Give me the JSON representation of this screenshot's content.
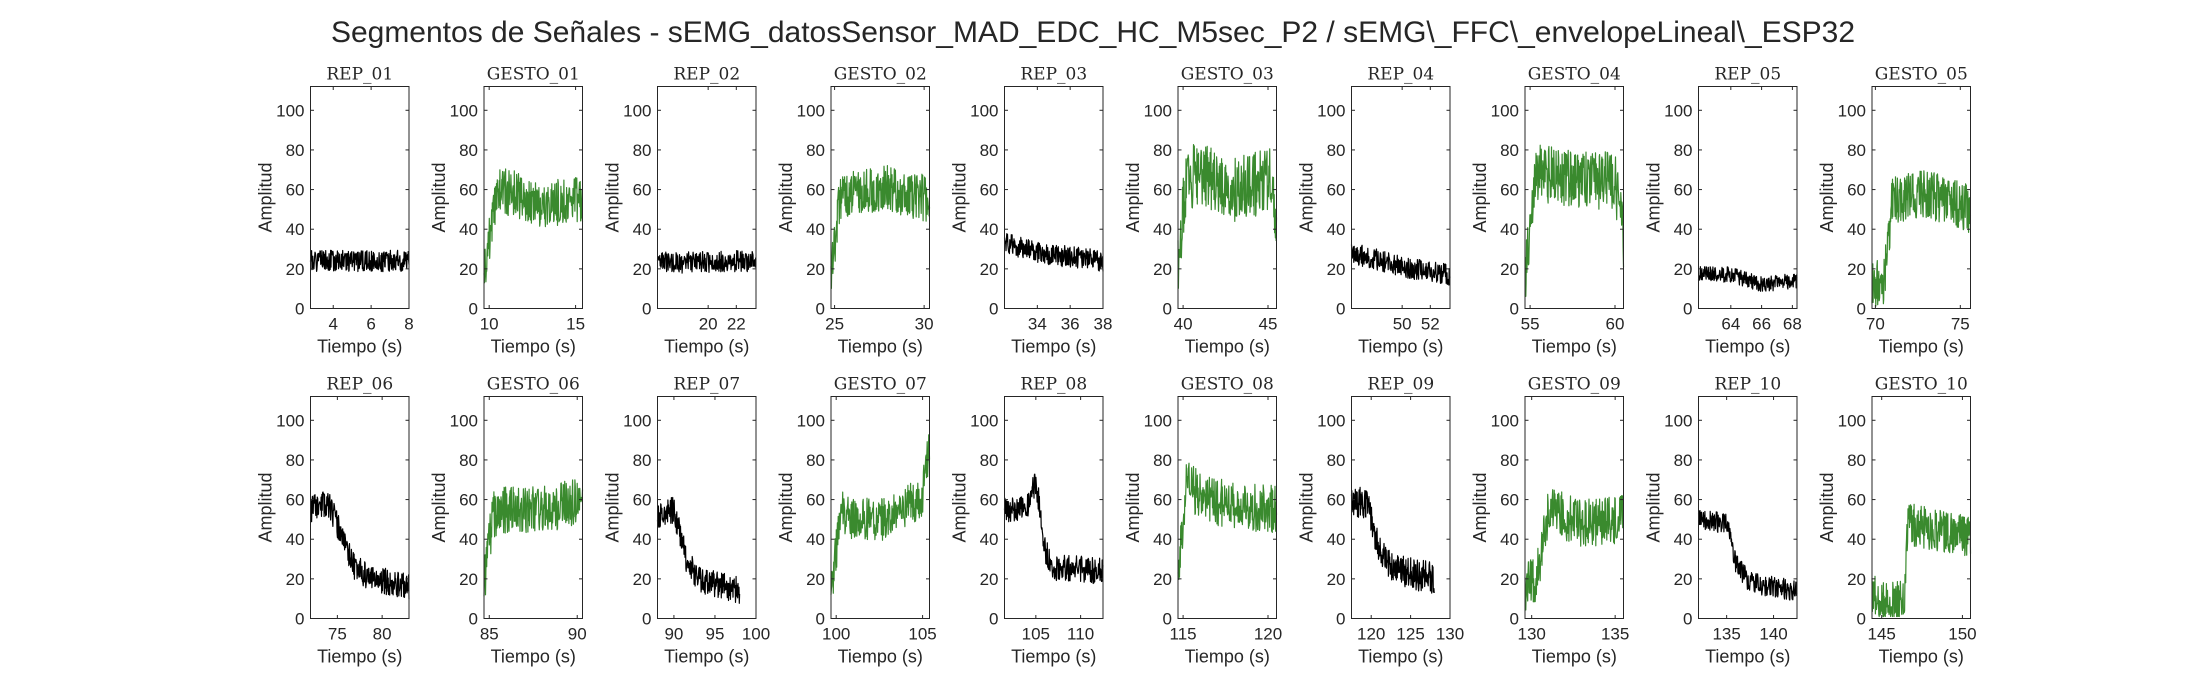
{
  "figure_title": "Segmentos de Señales - sEMG_datosSensor_MAD_EDC_HC_M5sec_P2 / sEMG\\_FFC\\_envelopeLineal\\_ESP32",
  "colors": {
    "rep": "#000000",
    "gesto": "#3a8a2e",
    "axis": "#262626"
  },
  "chart_data": [
    {
      "type": "line",
      "title": "REP_01",
      "xlabel": "Tiempo (s)",
      "ylabel": "Amplitud",
      "xlim": [
        2.8,
        8
      ],
      "ylim": [
        0,
        112
      ],
      "xticks": [
        4,
        6,
        8
      ],
      "yticks": [
        0,
        20,
        40,
        60,
        80,
        100
      ],
      "color": "#000000",
      "series": [
        {
          "x": [
            2.8,
            8
          ],
          "level": [
            24,
            24
          ],
          "noise": 4,
          "seed": 1
        }
      ]
    },
    {
      "type": "line",
      "title": "GESTO_01",
      "xlabel": "Tiempo (s)",
      "ylabel": "Amplitud",
      "xlim": [
        9.7,
        15.4
      ],
      "ylim": [
        0,
        112
      ],
      "xticks": [
        10,
        15
      ],
      "yticks": [
        0,
        20,
        40,
        60,
        80,
        100
      ],
      "color": "#3a8a2e",
      "series": [
        {
          "x": [
            9.7,
            10.5,
            11.5,
            13,
            15.4
          ],
          "level": [
            17,
            60,
            58,
            52,
            56
          ],
          "noise": 9,
          "seed": 2
        }
      ]
    },
    {
      "type": "line",
      "title": "REP_02",
      "xlabel": "Tiempo (s)",
      "ylabel": "Amplitud",
      "xlim": [
        16.4,
        23.4
      ],
      "ylim": [
        0,
        112
      ],
      "xticks": [
        20,
        22
      ],
      "yticks": [
        0,
        20,
        40,
        60,
        80,
        100
      ],
      "color": "#000000",
      "series": [
        {
          "x": [
            16.4,
            23.4
          ],
          "level": [
            23,
            24
          ],
          "noise": 4,
          "seed": 3
        }
      ]
    },
    {
      "type": "line",
      "title": "GESTO_02",
      "xlabel": "Tiempo (s)",
      "ylabel": "Amplitud",
      "xlim": [
        24.8,
        30.3
      ],
      "ylim": [
        0,
        112
      ],
      "xticks": [
        25,
        30
      ],
      "yticks": [
        0,
        20,
        40,
        60,
        80,
        100
      ],
      "color": "#3a8a2e",
      "series": [
        {
          "x": [
            24.8,
            25.3,
            26,
            28,
            30.3
          ],
          "level": [
            17,
            56,
            60,
            60,
            55
          ],
          "noise": 9,
          "seed": 4
        }
      ]
    },
    {
      "type": "line",
      "title": "REP_03",
      "xlabel": "Tiempo (s)",
      "ylabel": "Amplitud",
      "xlim": [
        32,
        38
      ],
      "ylim": [
        0,
        112
      ],
      "xticks": [
        34,
        36,
        38
      ],
      "yticks": [
        0,
        20,
        40,
        60,
        80,
        100
      ],
      "color": "#000000",
      "series": [
        {
          "x": [
            32,
            34,
            38
          ],
          "level": [
            33,
            28,
            24
          ],
          "noise": 4,
          "seed": 5
        }
      ]
    },
    {
      "type": "line",
      "title": "GESTO_03",
      "xlabel": "Tiempo (s)",
      "ylabel": "Amplitud",
      "xlim": [
        39.7,
        45.5
      ],
      "ylim": [
        0,
        112
      ],
      "xticks": [
        40,
        45
      ],
      "yticks": [
        0,
        20,
        40,
        60,
        80,
        100
      ],
      "color": "#3a8a2e",
      "series": [
        {
          "x": [
            39.7,
            40.2,
            41,
            43,
            45.3,
            45.5
          ],
          "level": [
            24,
            66,
            68,
            60,
            65,
            40
          ],
          "noise": 12,
          "seed": 6
        }
      ]
    },
    {
      "type": "line",
      "title": "REP_04",
      "xlabel": "Tiempo (s)",
      "ylabel": "Amplitud",
      "xlim": [
        46.4,
        53.4
      ],
      "ylim": [
        0,
        112
      ],
      "xticks": [
        50,
        52
      ],
      "yticks": [
        0,
        20,
        40,
        60,
        80,
        100
      ],
      "color": "#000000",
      "series": [
        {
          "x": [
            46.4,
            48,
            50,
            53.4
          ],
          "level": [
            28,
            25,
            21,
            17
          ],
          "noise": 4,
          "seed": 7
        }
      ]
    },
    {
      "type": "line",
      "title": "GESTO_04",
      "xlabel": "Tiempo (s)",
      "ylabel": "Amplitud",
      "xlim": [
        54.7,
        60.5
      ],
      "ylim": [
        0,
        112
      ],
      "xticks": [
        55,
        60
      ],
      "yticks": [
        0,
        20,
        40,
        60,
        80,
        100
      ],
      "color": "#3a8a2e",
      "series": [
        {
          "x": [
            54.7,
            55.3,
            56,
            58,
            60,
            60.5
          ],
          "level": [
            12,
            70,
            68,
            64,
            65,
            35
          ],
          "noise": 11,
          "seed": 8
        }
      ]
    },
    {
      "type": "line",
      "title": "REP_05",
      "xlabel": "Tiempo (s)",
      "ylabel": "Amplitud",
      "xlim": [
        61.9,
        68.3
      ],
      "ylim": [
        0,
        112
      ],
      "xticks": [
        64,
        66,
        68
      ],
      "yticks": [
        0,
        20,
        40,
        60,
        80,
        100
      ],
      "color": "#000000",
      "series": [
        {
          "x": [
            61.9,
            64,
            66,
            68.3
          ],
          "level": [
            18,
            17,
            12,
            14
          ],
          "noise": 3,
          "seed": 9
        }
      ]
    },
    {
      "type": "line",
      "title": "GESTO_05",
      "xlabel": "Tiempo (s)",
      "ylabel": "Amplitud",
      "xlim": [
        69.8,
        75.6
      ],
      "ylim": [
        0,
        112
      ],
      "xticks": [
        70,
        75
      ],
      "yticks": [
        0,
        20,
        40,
        60,
        80,
        100
      ],
      "color": "#3a8a2e",
      "series": [
        {
          "x": [
            69.8,
            70.5,
            71,
            73,
            75.6
          ],
          "level": [
            12,
            14,
            55,
            58,
            50
          ],
          "noise": 9,
          "seed": 10
        }
      ]
    },
    {
      "type": "line",
      "title": "REP_06",
      "xlabel": "Tiempo (s)",
      "ylabel": "Amplitud",
      "xlim": [
        72,
        83
      ],
      "ylim": [
        0,
        112
      ],
      "xticks": [
        75,
        80
      ],
      "yticks": [
        0,
        20,
        40,
        60,
        80,
        100
      ],
      "color": "#000000",
      "series": [
        {
          "x": [
            72,
            74,
            75.5,
            77,
            79,
            83
          ],
          "level": [
            55,
            58,
            42,
            25,
            20,
            16
          ],
          "noise": 5,
          "seed": 11
        }
      ]
    },
    {
      "type": "line",
      "title": "GESTO_06",
      "xlabel": "Tiempo (s)",
      "ylabel": "Amplitud",
      "xlim": [
        84.7,
        90.3
      ],
      "ylim": [
        0,
        112
      ],
      "xticks": [
        85,
        90
      ],
      "yticks": [
        0,
        20,
        40,
        60,
        80,
        100
      ],
      "color": "#3a8a2e",
      "series": [
        {
          "x": [
            84.7,
            85.2,
            86,
            88,
            90.3
          ],
          "level": [
            17,
            52,
            55,
            55,
            60
          ],
          "noise": 9,
          "seed": 12
        }
      ]
    },
    {
      "type": "line",
      "title": "REP_07",
      "xlabel": "Tiempo (s)",
      "ylabel": "Amplitud",
      "xlim": [
        88,
        100
      ],
      "ylim": [
        0,
        112
      ],
      "xticks": [
        90,
        95,
        100
      ],
      "yticks": [
        0,
        20,
        40,
        60,
        80,
        100
      ],
      "color": "#000000",
      "series": [
        {
          "x": [
            88,
            90,
            91.5,
            93,
            98
          ],
          "level": [
            52,
            55,
            30,
            20,
            14
          ],
          "noise": 5,
          "seed": 13
        }
      ]
    },
    {
      "type": "line",
      "title": "GESTO_07",
      "xlabel": "Tiempo (s)",
      "ylabel": "Amplitud",
      "xlim": [
        99.7,
        105.4
      ],
      "ylim": [
        0,
        112
      ],
      "xticks": [
        100,
        105
      ],
      "yticks": [
        0,
        20,
        40,
        60,
        80,
        100
      ],
      "color": "#3a8a2e",
      "series": [
        {
          "x": [
            99.7,
            100.3,
            101,
            103,
            105,
            105.4
          ],
          "level": [
            14,
            55,
            50,
            50,
            62,
            90
          ],
          "noise": 8,
          "seed": 14
        }
      ]
    },
    {
      "type": "line",
      "title": "REP_08",
      "xlabel": "Tiempo (s)",
      "ylabel": "Amplitud",
      "xlim": [
        101.5,
        112.5
      ],
      "ylim": [
        0,
        112
      ],
      "xticks": [
        105,
        110
      ],
      "yticks": [
        0,
        20,
        40,
        60,
        80,
        100
      ],
      "color": "#000000",
      "series": [
        {
          "x": [
            101.5,
            104,
            105,
            106,
            107,
            112.5
          ],
          "level": [
            55,
            55,
            70,
            35,
            26,
            24
          ],
          "noise": 5,
          "seed": 15
        }
      ]
    },
    {
      "type": "line",
      "title": "GESTO_08",
      "xlabel": "Tiempo (s)",
      "ylabel": "Amplitud",
      "xlim": [
        114.7,
        120.5
      ],
      "ylim": [
        0,
        112
      ],
      "xticks": [
        115,
        120
      ],
      "yticks": [
        0,
        20,
        40,
        60,
        80,
        100
      ],
      "color": "#3a8a2e",
      "series": [
        {
          "x": [
            114.7,
            115.2,
            116,
            118,
            120.5
          ],
          "level": [
            22,
            68,
            62,
            56,
            55
          ],
          "noise": 9,
          "seed": 16
        }
      ]
    },
    {
      "type": "line",
      "title": "REP_09",
      "xlabel": "Tiempo (s)",
      "ylabel": "Amplitud",
      "xlim": [
        117.5,
        130
      ],
      "ylim": [
        0,
        112
      ],
      "xticks": [
        120,
        125,
        130
      ],
      "yticks": [
        0,
        20,
        40,
        60,
        80,
        100
      ],
      "color": "#000000",
      "series": [
        {
          "x": [
            117.5,
            119.5,
            121,
            123,
            128
          ],
          "level": [
            60,
            58,
            35,
            25,
            20
          ],
          "noise": 6,
          "seed": 17
        }
      ]
    },
    {
      "type": "line",
      "title": "GESTO_09",
      "xlabel": "Tiempo (s)",
      "ylabel": "Amplitud",
      "xlim": [
        129.6,
        135.5
      ],
      "ylim": [
        0,
        112
      ],
      "xticks": [
        130,
        135
      ],
      "yticks": [
        0,
        20,
        40,
        60,
        80,
        100
      ],
      "color": "#3a8a2e",
      "series": [
        {
          "x": [
            129.6,
            130.3,
            131,
            133,
            135.5
          ],
          "level": [
            16,
            20,
            55,
            48,
            50
          ],
          "noise": 9,
          "seed": 18
        }
      ]
    },
    {
      "type": "line",
      "title": "REP_10",
      "xlabel": "Tiempo (s)",
      "ylabel": "Amplitud",
      "xlim": [
        132,
        142.5
      ],
      "ylim": [
        0,
        112
      ],
      "xticks": [
        135,
        140
      ],
      "yticks": [
        0,
        20,
        40,
        60,
        80,
        100
      ],
      "color": "#000000",
      "series": [
        {
          "x": [
            132,
            135,
            136,
            137.5,
            142.5
          ],
          "level": [
            50,
            48,
            28,
            18,
            14
          ],
          "noise": 4,
          "seed": 19
        }
      ]
    },
    {
      "type": "line",
      "title": "GESTO_10",
      "xlabel": "Tiempo (s)",
      "ylabel": "Amplitud",
      "xlim": [
        144.4,
        150.5
      ],
      "ylim": [
        0,
        112
      ],
      "xticks": [
        145,
        150
      ],
      "yticks": [
        0,
        20,
        40,
        60,
        80,
        100
      ],
      "color": "#3a8a2e",
      "series": [
        {
          "x": [
            144.4,
            144.8,
            145.1,
            146.4,
            146.6,
            148,
            150.5
          ],
          "level": [
            13,
            8,
            8,
            8,
            48,
            45,
            42
          ],
          "noise": 8,
          "seed": 20
        }
      ]
    }
  ]
}
